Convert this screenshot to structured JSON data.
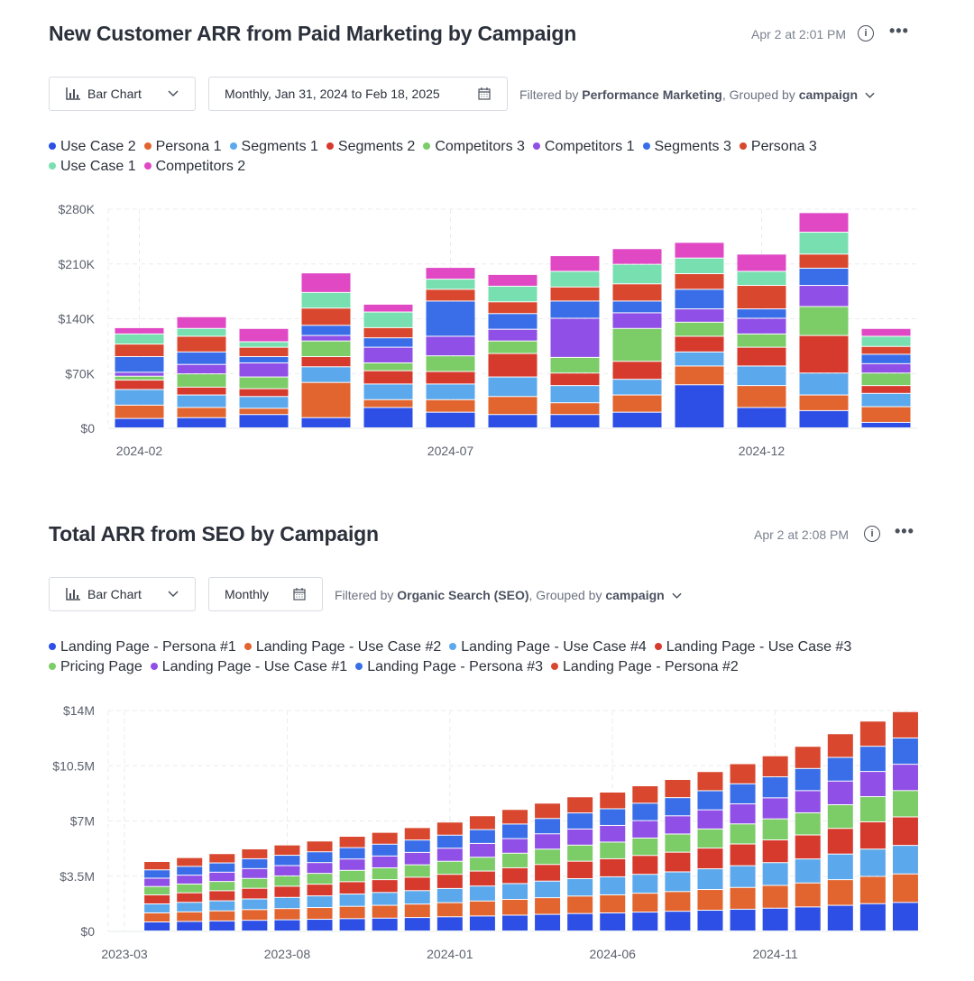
{
  "chart_data": [
    {
      "type": "bar",
      "stacked": true,
      "title": "New Customer ARR from Paid Marketing by Campaign",
      "timestamp": "Apr 2 at 2:01 PM",
      "chart_type_label": "Bar Chart",
      "date_range": "Monthly, Jan 31, 2024 to Feb 18, 2025",
      "filter": {
        "prefix": "Filtered by ",
        "value": "Performance Marketing",
        "middle": ", Grouped by ",
        "group": "campaign"
      },
      "ylim": [
        0,
        280000
      ],
      "y_ticks": [
        "$0",
        "$70K",
        "$140K",
        "$210K",
        "$280K"
      ],
      "x_ticks": [
        {
          "index": 0,
          "label": "2024-02"
        },
        {
          "index": 5,
          "label": "2024-07"
        },
        {
          "index": 10,
          "label": "2024-12"
        }
      ],
      "categories": [
        "2024-02",
        "2024-03",
        "2024-04",
        "2024-05",
        "2024-06",
        "2024-07",
        "2024-08",
        "2024-09",
        "2024-10",
        "2024-11",
        "2024-12",
        "2025-01",
        "2025-02"
      ],
      "series": [
        {
          "name": "Use Case 2",
          "color": "#2d4fe6",
          "values": [
            12000,
            13000,
            17000,
            13000,
            26000,
            20000,
            17000,
            17000,
            20000,
            55000,
            26000,
            22000,
            7000
          ]
        },
        {
          "name": "Persona 1",
          "color": "#e2642e",
          "values": [
            17000,
            13000,
            8000,
            45000,
            10000,
            16000,
            23000,
            15000,
            22000,
            24000,
            28000,
            20000,
            20000
          ]
        },
        {
          "name": "Segments 1",
          "color": "#5ca8ec",
          "values": [
            20000,
            16000,
            15000,
            20000,
            20000,
            20000,
            25000,
            22000,
            20000,
            18000,
            25000,
            28000,
            17000
          ]
        },
        {
          "name": "Segments 2",
          "color": "#d63a2d",
          "values": [
            12000,
            10000,
            10000,
            13000,
            17000,
            16000,
            30000,
            16000,
            23000,
            20000,
            24000,
            48000,
            10000
          ]
        },
        {
          "name": "Competitors 3",
          "color": "#7ccc68",
          "values": [
            5000,
            17000,
            15000,
            20000,
            10000,
            20000,
            16000,
            20000,
            42000,
            18000,
            17000,
            37000,
            16000
          ]
        },
        {
          "name": "Competitors 1",
          "color": "#904fe6",
          "values": [
            5000,
            12000,
            18000,
            7000,
            20000,
            25000,
            15000,
            50000,
            20000,
            17000,
            20000,
            27000,
            12000
          ]
        },
        {
          "name": "Segments 3",
          "color": "#3a6ee8",
          "values": [
            20000,
            16000,
            8000,
            13000,
            12000,
            45000,
            20000,
            22000,
            15000,
            25000,
            12000,
            22000,
            12000
          ]
        },
        {
          "name": "Persona 3",
          "color": "#d9472e",
          "values": [
            16000,
            20000,
            12000,
            22000,
            13000,
            15000,
            15000,
            18000,
            22000,
            20000,
            30000,
            18000,
            10000
          ]
        },
        {
          "name": "Use Case 1",
          "color": "#78e0b0",
          "values": [
            13000,
            10000,
            7000,
            20000,
            20000,
            13000,
            20000,
            20000,
            25000,
            20000,
            18000,
            28000,
            13000
          ]
        },
        {
          "name": "Competitors 2",
          "color": "#e048c4",
          "values": [
            8000,
            15000,
            17000,
            25000,
            10000,
            15000,
            15000,
            20000,
            20000,
            20000,
            22000,
            25000,
            10000
          ]
        }
      ]
    },
    {
      "type": "bar",
      "stacked": true,
      "title": "Total ARR from SEO by Campaign",
      "timestamp": "Apr 2 at 2:08 PM",
      "chart_type_label": "Bar Chart",
      "date_range": "Monthly",
      "filter": {
        "prefix": "Filtered by ",
        "value": "Organic Search (SEO)",
        "middle": ", Grouped by ",
        "group": "campaign"
      },
      "ylim": [
        0,
        14000000
      ],
      "y_ticks": [
        "$0",
        "$3.5M",
        "$7M",
        "$10.5M",
        "$14M"
      ],
      "x_ticks": [
        {
          "index": 0,
          "label": "2023-03"
        },
        {
          "index": 5,
          "label": "2023-08"
        },
        {
          "index": 10,
          "label": "2024-01"
        },
        {
          "index": 15,
          "label": "2024-06"
        },
        {
          "index": 20,
          "label": "2024-11"
        }
      ],
      "categories": [
        "2023-03",
        "2023-04",
        "2023-05",
        "2023-06",
        "2023-07",
        "2023-08",
        "2023-09",
        "2023-10",
        "2023-11",
        "2023-12",
        "2024-01",
        "2024-02",
        "2024-03",
        "2024-04",
        "2024-05",
        "2024-06",
        "2024-07",
        "2024-08",
        "2024-09",
        "2024-10",
        "2024-11",
        "2024-12",
        "2025-01",
        "2025-02"
      ],
      "first_bar_offset": 1,
      "totals": [
        4400000,
        4650000,
        4900000,
        5200000,
        5450000,
        5700000,
        6000000,
        6250000,
        6550000,
        6900000,
        7300000,
        7700000,
        8100000,
        8500000,
        8800000,
        9200000,
        9600000,
        10100000,
        10600000,
        11100000,
        11700000,
        12500000,
        13300000,
        13900000
      ],
      "series": [
        {
          "name": "Landing Page - Persona #1",
          "color": "#2d4fe6",
          "share": 0.13
        },
        {
          "name": "Landing Page - Use Case #2",
          "color": "#e2642e",
          "share": 0.13
        },
        {
          "name": "Landing Page - Use Case #4",
          "color": "#5ca8ec",
          "share": 0.13
        },
        {
          "name": "Landing Page - Use Case #3",
          "color": "#d63a2d",
          "share": 0.13
        },
        {
          "name": "Pricing Page",
          "color": "#7ccc68",
          "share": 0.12
        },
        {
          "name": "Landing Page - Use Case #1",
          "color": "#904fe6",
          "share": 0.12
        },
        {
          "name": "Landing Page - Persona #3",
          "color": "#3a6ee8",
          "share": 0.12
        },
        {
          "name": "Landing Page - Persona #2",
          "color": "#d9472e",
          "share": 0.12
        }
      ]
    }
  ]
}
